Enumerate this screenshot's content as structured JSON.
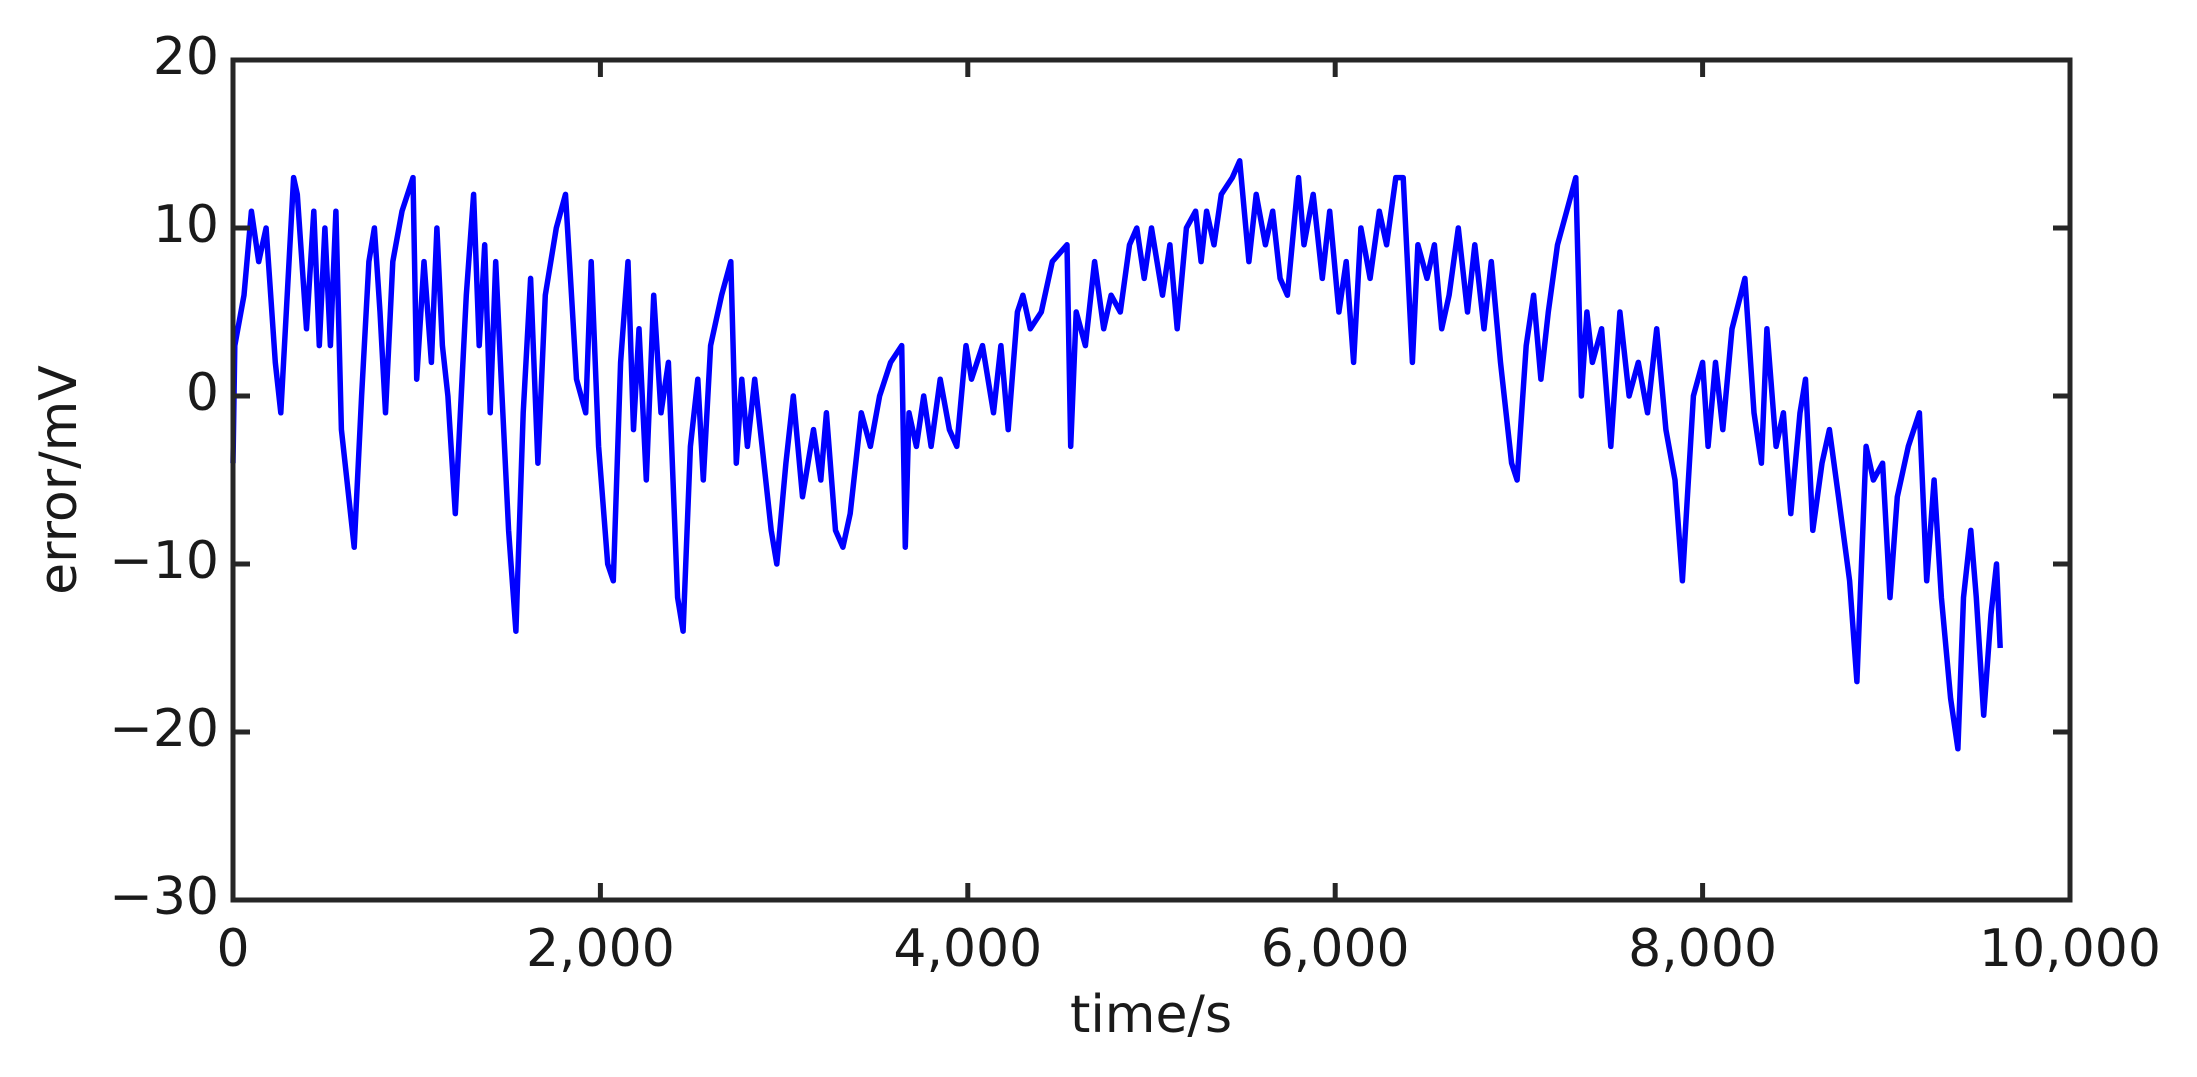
{
  "chart_data": {
    "type": "line",
    "xlabel": "time/s",
    "ylabel": "error/mV",
    "xlim": [
      0,
      10000
    ],
    "xticks": [
      0,
      {
        "value": 2000,
        "label": "2,000"
      },
      {
        "value": 4000,
        "label": "4,000"
      },
      {
        "value": 6000,
        "label": "6,000"
      },
      {
        "value": 8000,
        "label": "8,000"
      },
      {
        "value": 10000,
        "label": "10,000"
      }
    ],
    "ylim": [
      -30,
      20
    ],
    "yticks": [
      {
        "value": -30,
        "label": "−30"
      },
      {
        "value": -20,
        "label": "−20"
      },
      {
        "value": -10,
        "label": "−10"
      },
      0,
      10,
      20
    ],
    "grid": false,
    "series": [
      {
        "color": "#0000ff",
        "x": [
          0,
          10,
          60,
          100,
          140,
          180,
          230,
          260,
          290,
          330,
          350,
          400,
          440,
          470,
          500,
          530,
          560,
          590,
          620,
          660,
          700,
          740,
          770,
          800,
          830,
          870,
          920,
          980,
          1000,
          1040,
          1080,
          1110,
          1140,
          1170,
          1210,
          1270,
          1310,
          1340,
          1370,
          1400,
          1430,
          1460,
          1500,
          1540,
          1580,
          1620,
          1660,
          1700,
          1760,
          1810,
          1870,
          1920,
          1950,
          1990,
          2040,
          2070,
          2110,
          2150,
          2180,
          2210,
          2250,
          2290,
          2330,
          2370,
          2420,
          2450,
          2490,
          2530,
          2560,
          2600,
          2660,
          2710,
          2740,
          2770,
          2800,
          2840,
          2880,
          2930,
          2960,
          3010,
          3050,
          3100,
          3160,
          3200,
          3230,
          3280,
          3320,
          3360,
          3420,
          3470,
          3520,
          3580,
          3640,
          3660,
          3680,
          3720,
          3760,
          3800,
          3850,
          3900,
          3940,
          3990,
          4020,
          4080,
          4140,
          4180,
          4220,
          4270,
          4300,
          4340,
          4400,
          4460,
          4540,
          4560,
          4590,
          4640,
          4690,
          4740,
          4780,
          4830,
          4880,
          4920,
          4960,
          5000,
          5060,
          5100,
          5140,
          5190,
          5240,
          5270,
          5300,
          5340,
          5380,
          5440,
          5480,
          5530,
          5570,
          5620,
          5660,
          5700,
          5740,
          5800,
          5830,
          5880,
          5930,
          5970,
          6020,
          6060,
          6100,
          6140,
          6190,
          6240,
          6280,
          6330,
          6370,
          6420,
          6450,
          6500,
          6540,
          6580,
          6620,
          6670,
          6720,
          6760,
          6810,
          6850,
          6900,
          6960,
          6990,
          7040,
          7080,
          7120,
          7160,
          7210,
          7260,
          7310,
          7340,
          7370,
          7400,
          7450,
          7500,
          7550,
          7600,
          7650,
          7700,
          7750,
          7800,
          7850,
          7890,
          7950,
          8000,
          8030,
          8070,
          8110,
          8160,
          8230,
          8280,
          8320,
          8350,
          8400,
          8440,
          8480,
          8530,
          8560,
          8600,
          8650,
          8690,
          8740,
          8800,
          8840,
          8890,
          8930,
          8980,
          9020,
          9060,
          9120,
          9180,
          9220,
          9260,
          9300,
          9350,
          9390,
          9420,
          9460,
          9490,
          9530,
          9570,
          9600,
          9620
        ],
        "values": [
          -4,
          3,
          6,
          11,
          8,
          10,
          2,
          -1,
          5,
          13,
          12,
          4,
          11,
          3,
          10,
          3,
          11,
          -2,
          -5,
          -9,
          0,
          8,
          10,
          5,
          -1,
          8,
          11,
          13,
          1,
          8,
          2,
          10,
          3,
          0,
          -7,
          6,
          12,
          3,
          9,
          -1,
          8,
          1,
          -8,
          -14,
          -1,
          7,
          -4,
          6,
          10,
          12,
          1,
          -1,
          8,
          -3,
          -10,
          -11,
          2,
          8,
          -2,
          4,
          -5,
          6,
          -1,
          2,
          -12,
          -14,
          -3,
          1,
          -5,
          3,
          6,
          8,
          -4,
          1,
          -3,
          1,
          -3,
          -8,
          -10,
          -4,
          0,
          -6,
          -2,
          -5,
          -1,
          -8,
          -9,
          -7,
          -1,
          -3,
          0,
          2,
          3,
          -9,
          -1,
          -3,
          0,
          -3,
          1,
          -2,
          -3,
          3,
          1,
          3,
          -1,
          3,
          -2,
          5,
          6,
          4,
          5,
          8,
          9,
          -3,
          5,
          3,
          8,
          4,
          6,
          5,
          9,
          10,
          7,
          10,
          6,
          9,
          4,
          10,
          11,
          8,
          11,
          9,
          12,
          13,
          14,
          8,
          12,
          9,
          11,
          7,
          6,
          13,
          9,
          12,
          7,
          11,
          5,
          8,
          2,
          10,
          7,
          11,
          9,
          13,
          13,
          2,
          9,
          7,
          9,
          4,
          6,
          10,
          5,
          9,
          4,
          8,
          2,
          -4,
          -5,
          3,
          6,
          1,
          5,
          9,
          11,
          13,
          0,
          5,
          2,
          4,
          -3,
          5,
          0,
          2,
          -1,
          4,
          -2,
          -5,
          -11,
          0,
          2,
          -3,
          2,
          -2,
          4,
          7,
          -1,
          -4,
          4,
          -3,
          -1,
          -7,
          -1,
          1,
          -8,
          -4,
          -2,
          -6,
          -11,
          -17,
          -3,
          -5,
          -4,
          -12,
          -6,
          -3,
          -1,
          -11,
          -5,
          -12,
          -18,
          -21,
          -12,
          -8,
          -12,
          -19,
          -13,
          -10,
          -15
        ]
      }
    ]
  }
}
